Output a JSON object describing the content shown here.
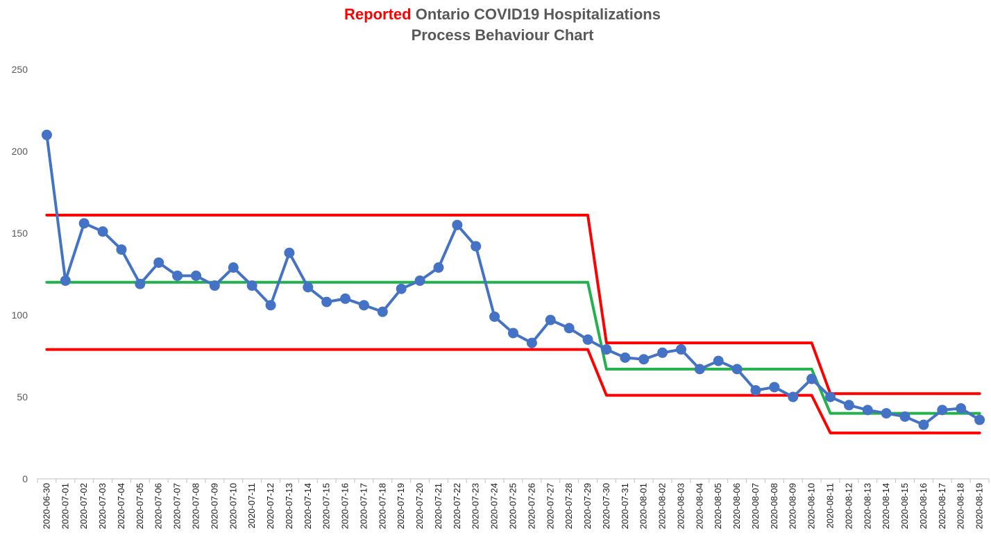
{
  "chart_data": {
    "type": "line",
    "title_highlight": "Reported",
    "title_rest": "Ontario COVID19 Hospitalizations",
    "subtitle": "Process Behaviour Chart",
    "ylim": [
      0,
      250
    ],
    "yticks": [
      0,
      50,
      100,
      150,
      200,
      250
    ],
    "grid": false,
    "categories": [
      "2020-06-30",
      "2020-07-01",
      "2020-07-02",
      "2020-07-03",
      "2020-07-04",
      "2020-07-05",
      "2020-07-06",
      "2020-07-07",
      "2020-07-08",
      "2020-07-09",
      "2020-07-10",
      "2020-07-11",
      "2020-07-12",
      "2020-07-13",
      "2020-07-14",
      "2020-07-15",
      "2020-07-16",
      "2020-07-17",
      "2020-07-18",
      "2020-07-19",
      "2020-07-20",
      "2020-07-21",
      "2020-07-22",
      "2020-07-23",
      "2020-07-24",
      "2020-07-25",
      "2020-07-26",
      "2020-07-27",
      "2020-07-28",
      "2020-07-29",
      "2020-07-30",
      "2020-07-31",
      "2020-08-01",
      "2020-08-02",
      "2020-08-03",
      "2020-08-04",
      "2020-08-05",
      "2020-08-06",
      "2020-08-07",
      "2020-08-08",
      "2020-08-09",
      "2020-08-10",
      "2020-08-11",
      "2020-08-12",
      "2020-08-13",
      "2020-08-14",
      "2020-08-15",
      "2020-08-16",
      "2020-08-17",
      "2020-08-18",
      "2020-08-19"
    ],
    "series": [
      {
        "role": "data",
        "color": "#4472c4",
        "markers": true,
        "values": [
          210,
          121,
          156,
          151,
          140,
          119,
          132,
          124,
          124,
          118,
          129,
          118,
          106,
          138,
          117,
          108,
          110,
          106,
          102,
          116,
          121,
          129,
          155,
          142,
          99,
          89,
          83,
          97,
          92,
          85,
          79,
          74,
          73,
          77,
          79,
          67,
          72,
          67,
          54,
          56,
          50,
          61,
          50,
          45,
          42,
          40,
          38,
          33,
          42,
          43,
          36
        ]
      },
      {
        "role": "upper-limit",
        "color": "#ff0000",
        "markers": false,
        "values": [
          161,
          161,
          161,
          161,
          161,
          161,
          161,
          161,
          161,
          161,
          161,
          161,
          161,
          161,
          161,
          161,
          161,
          161,
          161,
          161,
          161,
          161,
          161,
          161,
          161,
          161,
          161,
          161,
          161,
          161,
          83,
          83,
          83,
          83,
          83,
          83,
          83,
          83,
          83,
          83,
          83,
          83,
          52,
          52,
          52,
          52,
          52,
          52,
          52,
          52,
          52
        ]
      },
      {
        "role": "center-line",
        "color": "#22b14c",
        "markers": false,
        "values": [
          120,
          120,
          120,
          120,
          120,
          120,
          120,
          120,
          120,
          120,
          120,
          120,
          120,
          120,
          120,
          120,
          120,
          120,
          120,
          120,
          120,
          120,
          120,
          120,
          120,
          120,
          120,
          120,
          120,
          120,
          67,
          67,
          67,
          67,
          67,
          67,
          67,
          67,
          67,
          67,
          67,
          67,
          40,
          40,
          40,
          40,
          40,
          40,
          40,
          40,
          40
        ]
      },
      {
        "role": "lower-limit",
        "color": "#ff0000",
        "markers": false,
        "values": [
          79,
          79,
          79,
          79,
          79,
          79,
          79,
          79,
          79,
          79,
          79,
          79,
          79,
          79,
          79,
          79,
          79,
          79,
          79,
          79,
          79,
          79,
          79,
          79,
          79,
          79,
          79,
          79,
          79,
          79,
          51,
          51,
          51,
          51,
          51,
          51,
          51,
          51,
          51,
          51,
          51,
          51,
          28,
          28,
          28,
          28,
          28,
          28,
          28,
          28,
          28
        ]
      }
    ]
  }
}
